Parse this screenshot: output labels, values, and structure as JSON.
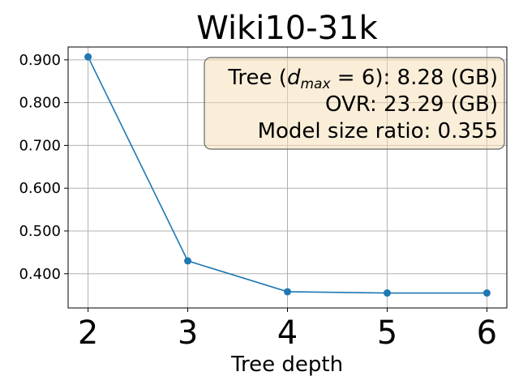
{
  "chart_data": {
    "type": "line",
    "title": "Wiki10-31k",
    "xlabel": "Tree depth",
    "ylabel": "",
    "x": [
      2,
      3,
      4,
      5,
      6
    ],
    "series": [
      {
        "values": [
          0.907,
          0.43,
          0.358,
          0.355,
          0.355
        ],
        "color": "#1f77b4"
      }
    ],
    "xlim": [
      1.8,
      6.2
    ],
    "ylim": [
      0.32,
      0.93
    ],
    "xticks": [
      "2",
      "3",
      "4",
      "5",
      "6"
    ],
    "yticks": [
      0.4,
      0.5,
      0.6,
      0.7,
      0.8,
      0.9
    ],
    "ytick_labels": [
      "0.400",
      "0.500",
      "0.600",
      "0.700",
      "0.800",
      "0.900"
    ],
    "grid": true,
    "annotation": {
      "line1_prefix": "Tree (",
      "line1_var": "d",
      "line1_sub": "max",
      "line1_eq": " = 6",
      "line1_suffix": "): 8.28 (GB)",
      "line2": "OVR: 23.29 (GB)",
      "line3": "Model size ratio: 0.355",
      "placement": "top-right",
      "box_fill": "#f5deb3",
      "box_edge": "#666666"
    }
  }
}
